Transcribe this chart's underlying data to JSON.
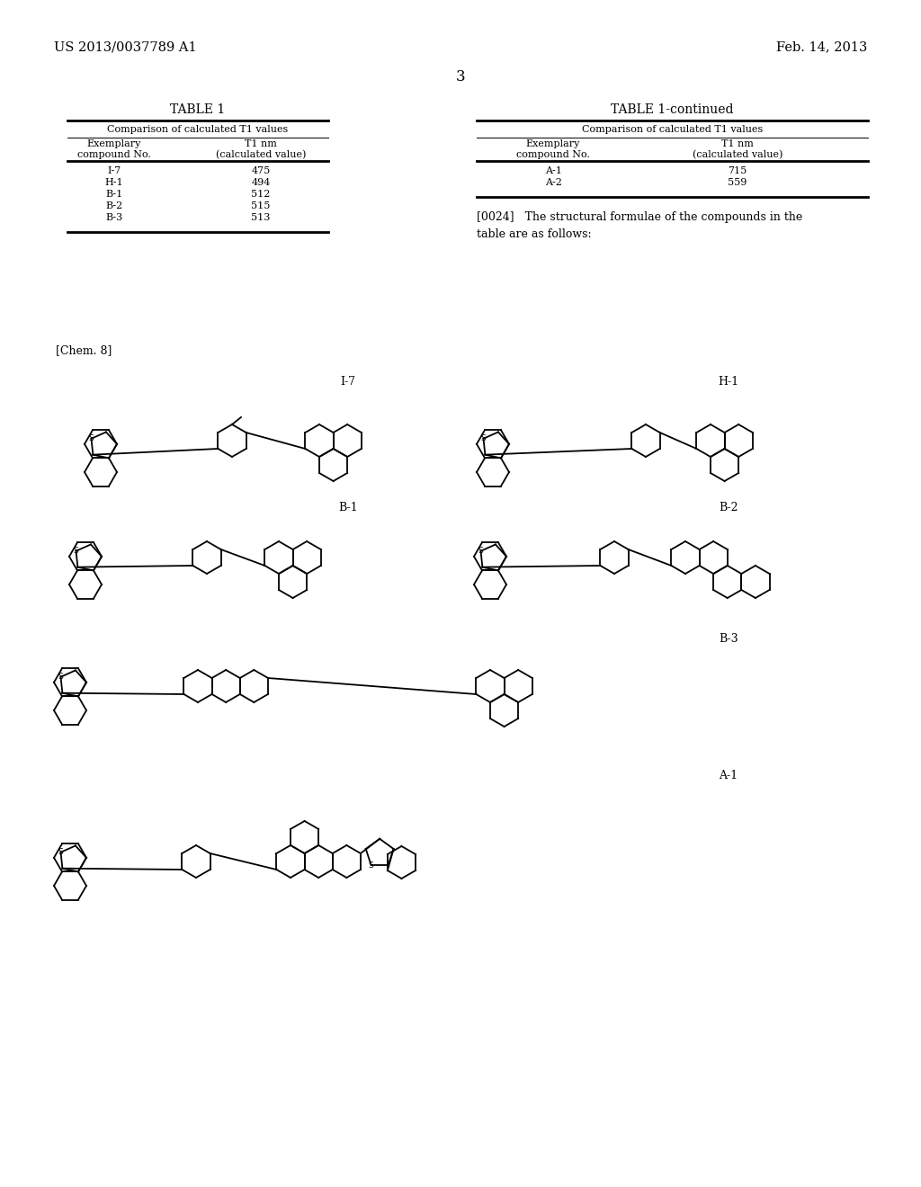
{
  "bg_color": "#ffffff",
  "header_left": "US 2013/0037789 A1",
  "header_right": "Feb. 14, 2013",
  "page_number": "3",
  "table1_title": "TABLE 1",
  "table1_subtitle": "Comparison of calculated T1 values",
  "table1_data": [
    [
      "I-7",
      "475"
    ],
    [
      "H-1",
      "494"
    ],
    [
      "B-1",
      "512"
    ],
    [
      "B-2",
      "515"
    ],
    [
      "B-3",
      "513"
    ]
  ],
  "table2_title": "TABLE 1-continued",
  "table2_subtitle": "Comparison of calculated T1 values",
  "table2_data": [
    [
      "A-1",
      "715"
    ],
    [
      "A-2",
      "559"
    ]
  ],
  "paragraph": "[0024]   The structural formulae of the compounds in the\ntable are as follows:",
  "chem_label": "[Chem. 8]",
  "compound_labels": [
    "I-7",
    "H-1",
    "B-1",
    "B-2",
    "B-3",
    "A-1"
  ]
}
